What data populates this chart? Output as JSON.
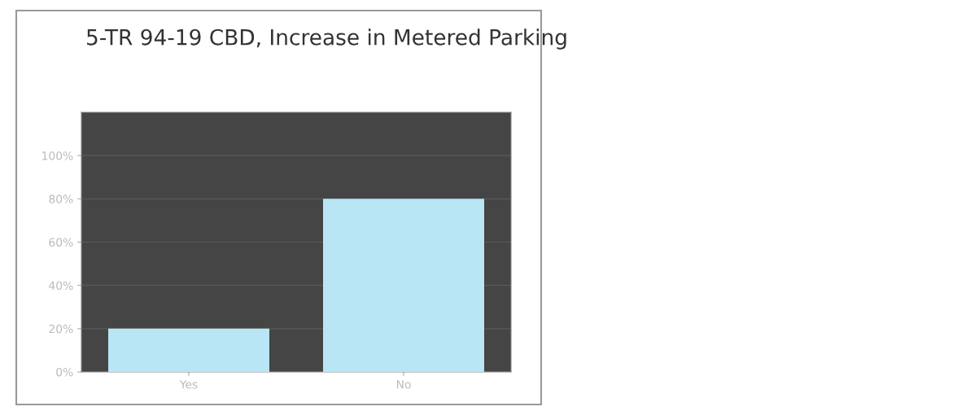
{
  "chart_data": {
    "type": "bar",
    "title": "5-TR 94-19 CBD, Increase in Metered Parking",
    "categories": [
      "Yes",
      "No"
    ],
    "values": [
      20,
      80
    ],
    "color": "#b8e6f4",
    "ylim": [
      0,
      120
    ],
    "yticks": [
      {
        "value": 0,
        "label": "0%"
      },
      {
        "value": 20,
        "label": "20%"
      },
      {
        "value": 40,
        "label": "40%"
      },
      {
        "value": 60,
        "label": "60%"
      },
      {
        "value": 80,
        "label": "80%"
      },
      {
        "value": 100,
        "label": "100%"
      }
    ],
    "grid": "y"
  }
}
